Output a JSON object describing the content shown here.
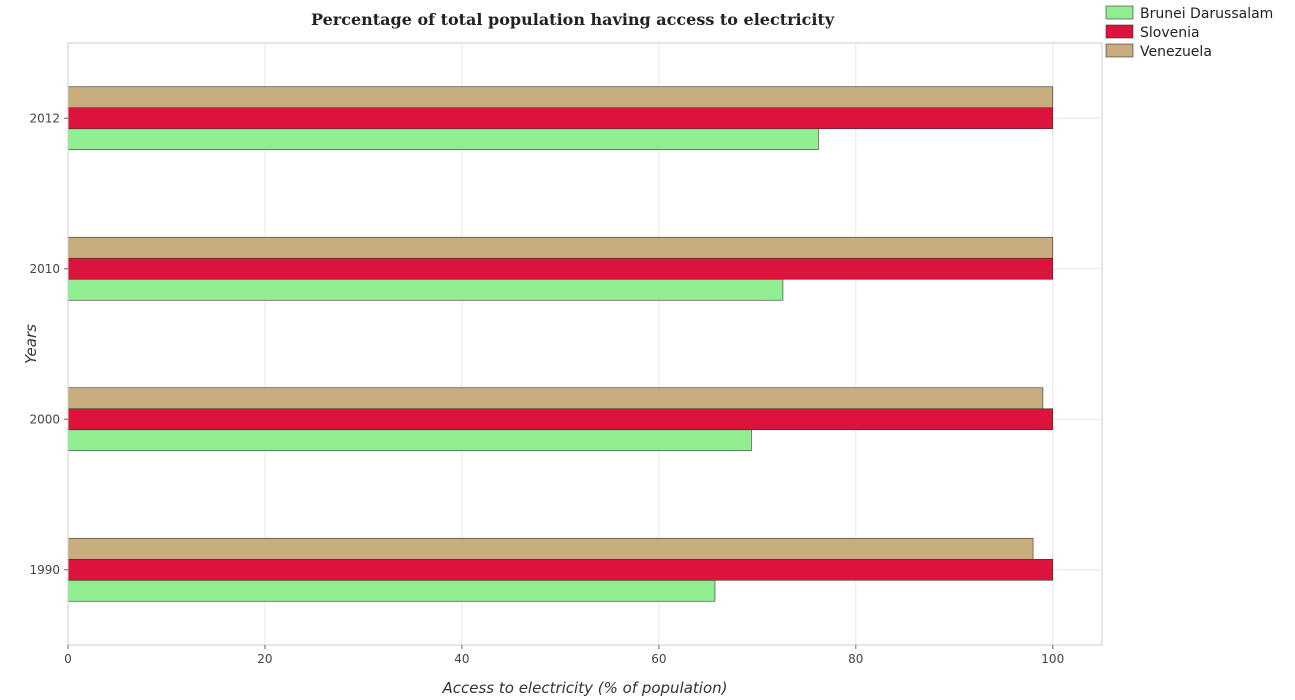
{
  "chart_data": {
    "type": "bar",
    "orientation": "horizontal",
    "title": "Percentage of total population having access to electricity",
    "xlabel": "Access to electricity (% of population)",
    "ylabel": "Years",
    "categories": [
      "1990",
      "2000",
      "2010",
      "2012"
    ],
    "xlim": [
      0,
      105
    ],
    "xticks": [
      "0",
      "20",
      "40",
      "60",
      "80",
      "100"
    ],
    "grid": true,
    "legend_position": "top-right",
    "series": [
      {
        "name": "Brunei Darussalam",
        "color": "#90ee90",
        "values": [
          65.7,
          69.4,
          72.6,
          76.2
        ]
      },
      {
        "name": "Slovenia",
        "color": "#dc143c",
        "values": [
          100,
          100,
          100,
          100
        ]
      },
      {
        "name": "Venezuela",
        "color": "#c8ad7f",
        "values": [
          98.0,
          99.0,
          100,
          100
        ]
      }
    ]
  }
}
